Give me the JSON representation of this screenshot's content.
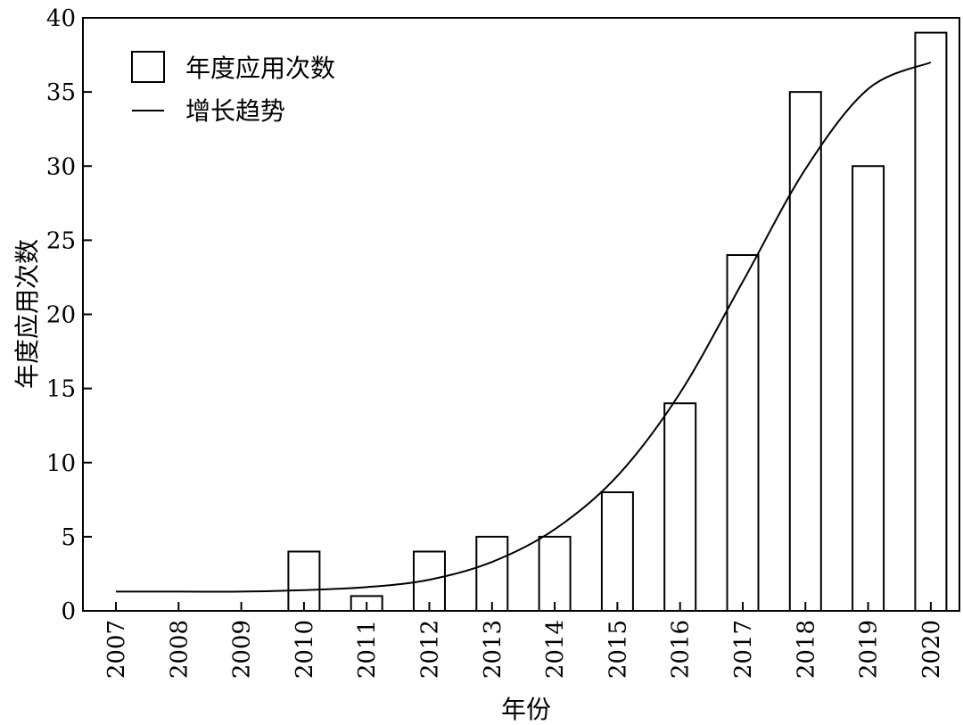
{
  "chart_data": {
    "type": "bar",
    "title": "",
    "xlabel": "年份",
    "ylabel": "年度应用次数",
    "categories": [
      "2007",
      "2008",
      "2009",
      "2010",
      "2011",
      "2012",
      "2013",
      "2014",
      "2015",
      "2016",
      "2017",
      "2018",
      "2019",
      "2020"
    ],
    "series": [
      {
        "name": "年度应用次数",
        "type": "bar",
        "values": [
          0,
          0,
          0,
          4,
          1,
          4,
          5,
          5,
          8,
          14,
          24,
          35,
          30,
          39
        ]
      },
      {
        "name": "增长趋势",
        "type": "line",
        "values": [
          1.3,
          1.3,
          1.3,
          1.4,
          1.6,
          2.1,
          3.3,
          5.5,
          9.1,
          14.7,
          22.2,
          29.8,
          35.2,
          37.0
        ]
      }
    ],
    "ylim": [
      0,
      40
    ],
    "yticks": [
      0,
      5,
      10,
      15,
      20,
      25,
      30,
      35,
      40
    ],
    "legend_position": "top-left",
    "grid": false,
    "colors": {
      "bar_fill": "#ffffff",
      "stroke": "#000000",
      "background": "#ffffff"
    }
  }
}
